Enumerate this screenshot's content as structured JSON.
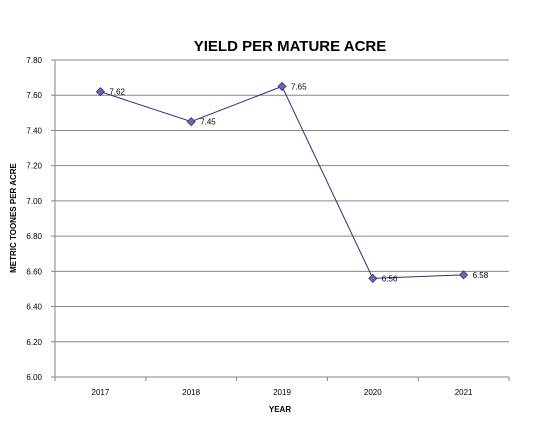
{
  "chart_data": {
    "type": "line",
    "title": "YIELD PER MATURE ACRE",
    "xlabel": "YEAR",
    "ylabel": "METRIC TOONES PER ACRE",
    "categories": [
      "2017",
      "2018",
      "2019",
      "2020",
      "2021"
    ],
    "series": [
      {
        "values": [
          7.62,
          7.45,
          7.65,
          6.56,
          6.58
        ]
      }
    ],
    "data_labels": [
      "7.62",
      "7.45",
      "7.65",
      "6.56",
      "6.58"
    ],
    "ylim": [
      6.0,
      7.8
    ],
    "y_ticks": [
      "6.00",
      "6.20",
      "6.40",
      "6.60",
      "6.80",
      "7.00",
      "7.20",
      "7.40",
      "7.60",
      "7.80"
    ],
    "grid": true,
    "legend": "none",
    "colors": {
      "line": "#2e2e7a",
      "marker": "#6b6bb0",
      "grid": "#868686"
    }
  }
}
